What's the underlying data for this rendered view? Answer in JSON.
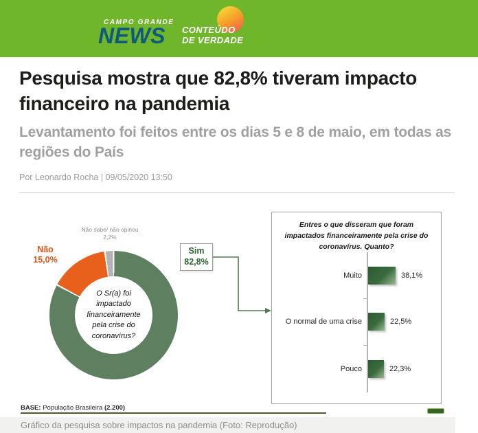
{
  "colors": {
    "banner_bg": "#6fb62a",
    "brand_navy": "#0e5a7d",
    "donut_green": "#5e7f60",
    "donut_orange": "#e8611c",
    "donut_gray": "#b3b3b3",
    "bar_green_dark": "#2c5931",
    "bar_green_light": "#9ab98f",
    "arrow_green": "#4e7b4e",
    "nao_label_orange": "#e05514",
    "sim_text_green": "#2e6632"
  },
  "banner": {
    "brand_top": "CAMPO GRANDE",
    "brand_main": "NEWS",
    "tagline_line1": "CONTEÚDO",
    "tagline_line2": "DE VERDADE"
  },
  "article": {
    "headline": "Pesquisa mostra que 82,8% tiveram impacto financeiro na pandemia",
    "subheadline": "Levantamento foi feitos entre os dias 5 e 8 de maio, em todas as regiões do País",
    "byline": "Por Leonardo Rocha | 09/05/2020 13:50",
    "caption": "Gráfico da pesquisa sobre impactos na pandemia (Foto: Reprodução)"
  },
  "infographic": {
    "base_label": "BASE:",
    "base_text": "População Brasileira",
    "base_count": "(2.200)"
  },
  "chart_data": [
    {
      "type": "pie",
      "subtype": "donut",
      "center_label": "O Sr(a) foi impactado financeiramente pela crise do coronavírus?",
      "start_angle_deg": 0,
      "direction": "clockwise",
      "slices": [
        {
          "name": "Sim",
          "value": 82.8,
          "label": "82,8%",
          "color": "#5e7f60"
        },
        {
          "name": "Não",
          "value": 15.0,
          "label": "15,0%",
          "color": "#e8611c"
        },
        {
          "name": "Não sabe/ não opinou",
          "value": 2.2,
          "label": "2,2%",
          "color": "#b3b3b3"
        }
      ]
    },
    {
      "type": "bar",
      "orientation": "horizontal",
      "title": "Entres o que disseram que foram impactados financeiramente pela crise do coronavírus. Quanto?",
      "categories": [
        "Muito",
        "O normal de uma crise",
        "Pouco"
      ],
      "values": [
        38.1,
        22.5,
        22.3
      ],
      "value_labels": [
        "38,1%",
        "22,5%",
        "22,3%"
      ],
      "xlim": [
        0,
        100
      ],
      "legend": null,
      "grid": false
    }
  ]
}
